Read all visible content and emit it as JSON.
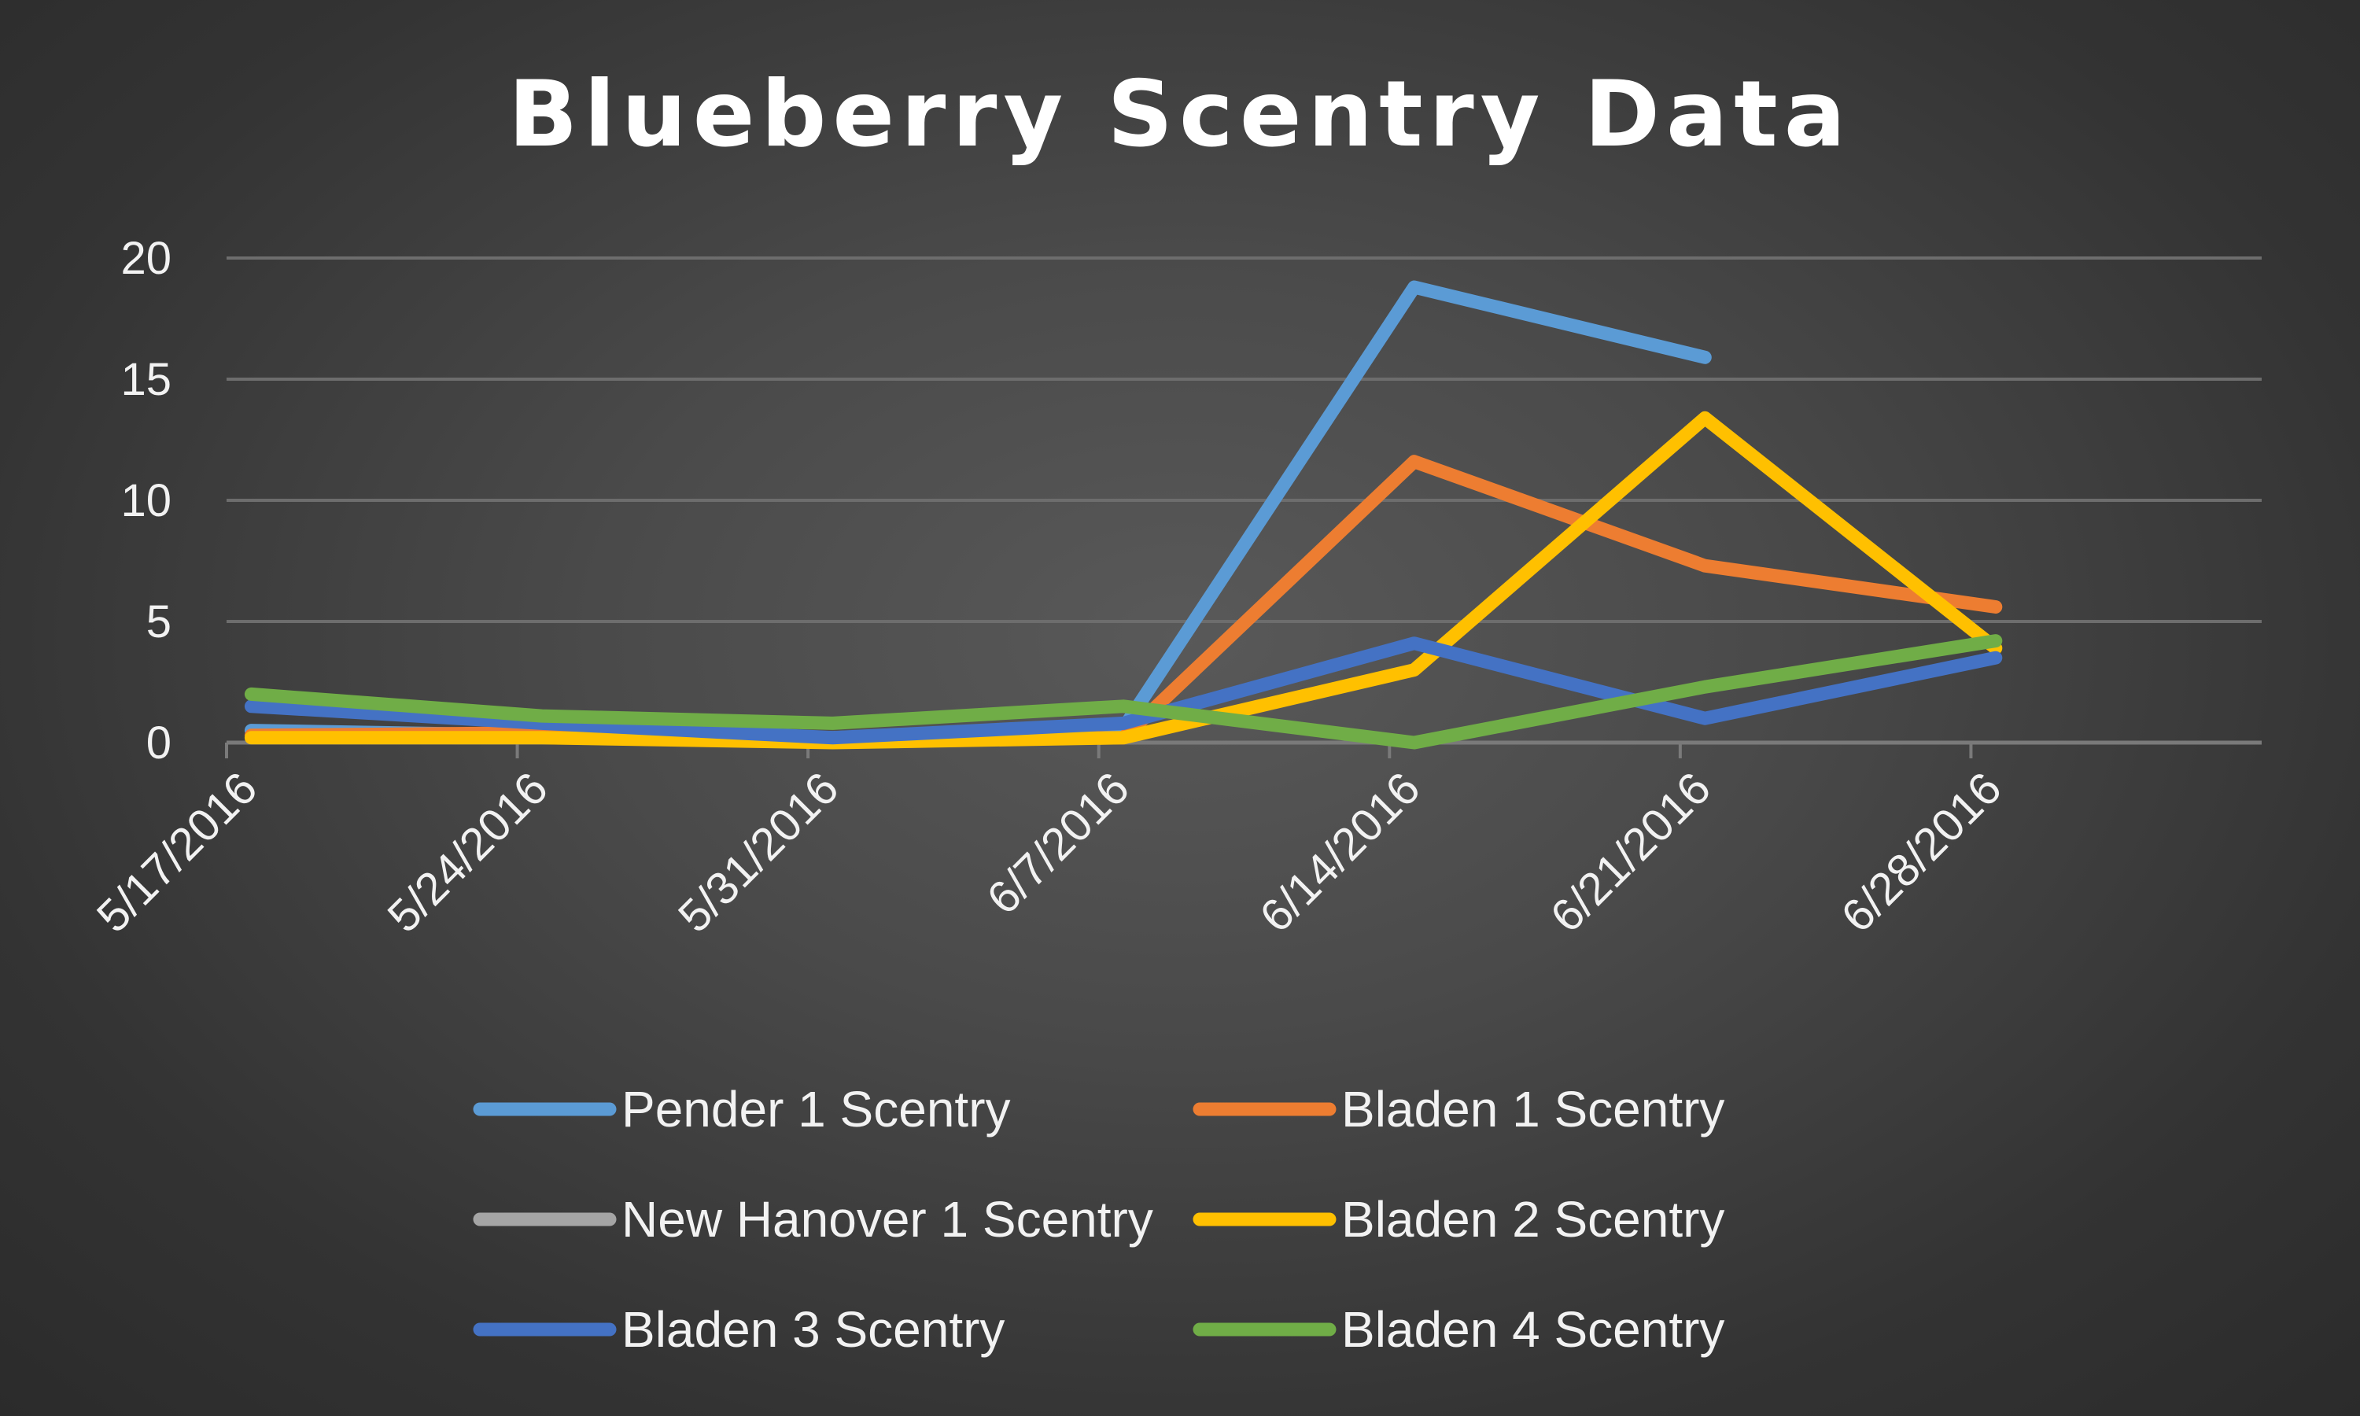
{
  "chart_data": {
    "type": "line",
    "title": "Blueberry Scentry Data",
    "xlabel": "",
    "ylabel": "",
    "x": [
      "5/17/2016",
      "5/24/2016",
      "5/31/2016",
      "6/7/2016",
      "6/14/2016",
      "6/21/2016",
      "6/28/2016"
    ],
    "x_axis": {
      "type": "date",
      "range": [
        "5/17/2016",
        "6/28/2016"
      ],
      "tick_labels": [
        "5/17/2016",
        "5/24/2016",
        "5/31/2016",
        "6/7/2016",
        "6/14/2016",
        "6/21/2016",
        "6/28/2016"
      ]
    },
    "ylim": [
      0,
      20
    ],
    "y_ticks": [
      "0",
      "5",
      "10",
      "15",
      "20"
    ],
    "y_tick_values": [
      0,
      5,
      10,
      15,
      20
    ],
    "grid": true,
    "legend_position": "bottom",
    "series": [
      {
        "name": "Pender 1 Scentry",
        "color": "#5b9bd5",
        "points": [
          {
            "date": "5/17/2016",
            "y": 0.5
          },
          {
            "date": "5/24/2016",
            "y": 0.3
          },
          {
            "date": "5/31/2016",
            "y": 0.2
          },
          {
            "date": "6/7/2016",
            "y": 0.6
          },
          {
            "date": "6/14/2016",
            "y": 18.8
          },
          {
            "date": "6/21/2016",
            "y": 15.9
          }
        ]
      },
      {
        "name": "Bladen 1 Scentry",
        "color": "#ed7d31",
        "points": [
          {
            "date": "5/17/2016",
            "y": 0.3
          },
          {
            "date": "5/24/2016",
            "y": 0.4
          },
          {
            "date": "5/31/2016",
            "y": 0.1
          },
          {
            "date": "6/7/2016",
            "y": 0.2
          },
          {
            "date": "6/14/2016",
            "y": 11.6
          },
          {
            "date": "6/21/2016",
            "y": 7.3
          },
          {
            "date": "6/28/2016",
            "y": 5.6
          }
        ]
      },
      {
        "name": "New Hanover 1 Scentry",
        "color": "#a5a5a5",
        "points": []
      },
      {
        "name": "Bladen 2 Scentry",
        "color": "#ffc000",
        "points": [
          {
            "date": "5/17/2016",
            "y": 0.2
          },
          {
            "date": "5/24/2016",
            "y": 0.2
          },
          {
            "date": "5/31/2016",
            "y": 0.0
          },
          {
            "date": "6/7/2016",
            "y": 0.2
          },
          {
            "date": "6/14/2016",
            "y": 3.0
          },
          {
            "date": "6/21/2016",
            "y": 13.4
          },
          {
            "date": "6/28/2016",
            "y": 3.9
          }
        ]
      },
      {
        "name": "Bladen 3 Scentry",
        "color": "#4472c4",
        "points": [
          {
            "date": "5/17/2016",
            "y": 1.5
          },
          {
            "date": "5/24/2016",
            "y": 0.8
          },
          {
            "date": "5/31/2016",
            "y": 0.2
          },
          {
            "date": "6/7/2016",
            "y": 0.8
          },
          {
            "date": "6/14/2016",
            "y": 4.1
          },
          {
            "date": "6/21/2016",
            "y": 1.0
          },
          {
            "date": "6/28/2016",
            "y": 3.5
          }
        ]
      },
      {
        "name": "Bladen 4 Scentry",
        "color": "#70ad47",
        "points": [
          {
            "date": "5/17/2016",
            "y": 2.0
          },
          {
            "date": "5/24/2016",
            "y": 1.1
          },
          {
            "date": "5/31/2016",
            "y": 0.8
          },
          {
            "date": "6/7/2016",
            "y": 1.5
          },
          {
            "date": "6/14/2016",
            "y": 0.0
          },
          {
            "date": "6/21/2016",
            "y": 2.3
          },
          {
            "date": "6/28/2016",
            "y": 4.2
          }
        ]
      }
    ]
  }
}
